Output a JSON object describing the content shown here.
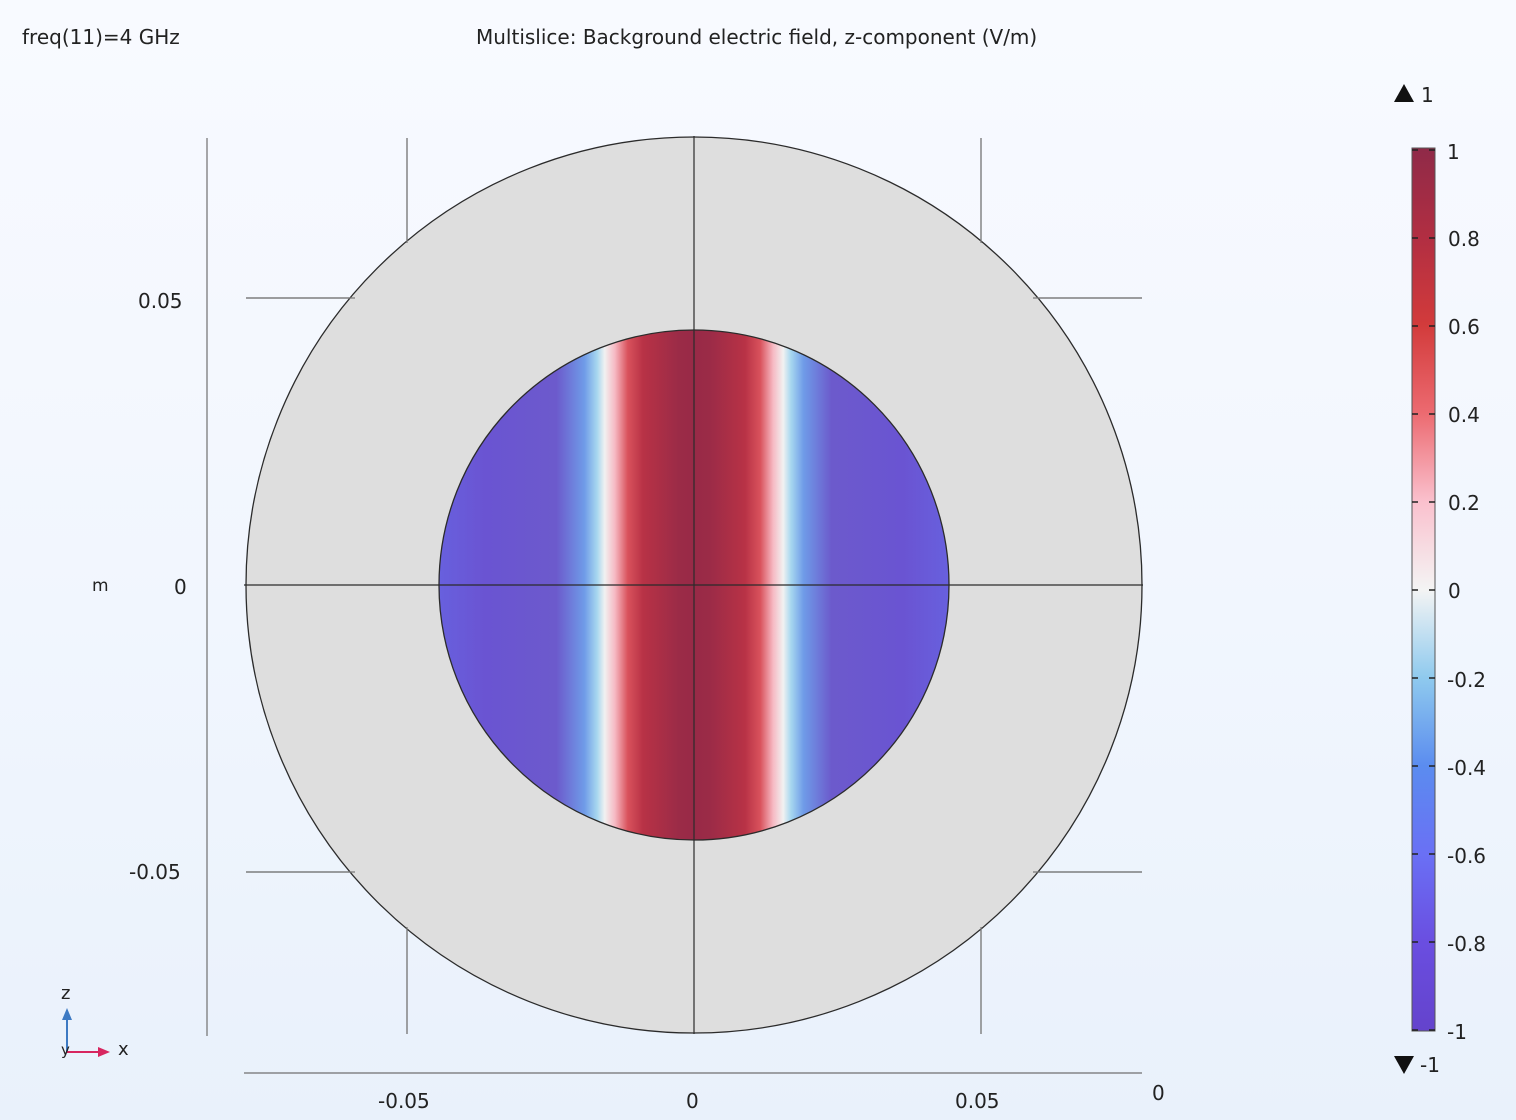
{
  "header": {
    "parameter_label": "freq(11)=4 GHz",
    "plot_title": "Multislice: Background electric field, z-component (V/m)"
  },
  "axes": {
    "unit_label": "m",
    "x_ticks": [
      "-0.05",
      "0",
      "0.05"
    ],
    "y_ticks": [
      "0.05",
      "0",
      "-0.05"
    ],
    "depth_tick": "0"
  },
  "colorbar": {
    "max_marker": "1",
    "min_marker": "-1",
    "tick_labels": [
      "1",
      "0.8",
      "0.6",
      "0.4",
      "0.2",
      "0",
      "-0.2",
      "-0.4",
      "-0.6",
      "-0.8",
      "-1"
    ],
    "range": [
      -1,
      1
    ],
    "colormap": "wave",
    "colors": [
      "#8f2a48",
      "#b12e42",
      "#d23b3b",
      "#ec6a70",
      "#fac0cd",
      "#f4f4f4",
      "#8fcaee",
      "#5b8cef",
      "#6a5eea",
      "#6443cc"
    ]
  },
  "triad": {
    "axis_z": "z",
    "axis_x": "x",
    "axis_y": "y"
  },
  "domain_colors": {
    "outer_domain": "#dedede",
    "edges": "#2b2b2b",
    "grid": "#707070"
  }
}
